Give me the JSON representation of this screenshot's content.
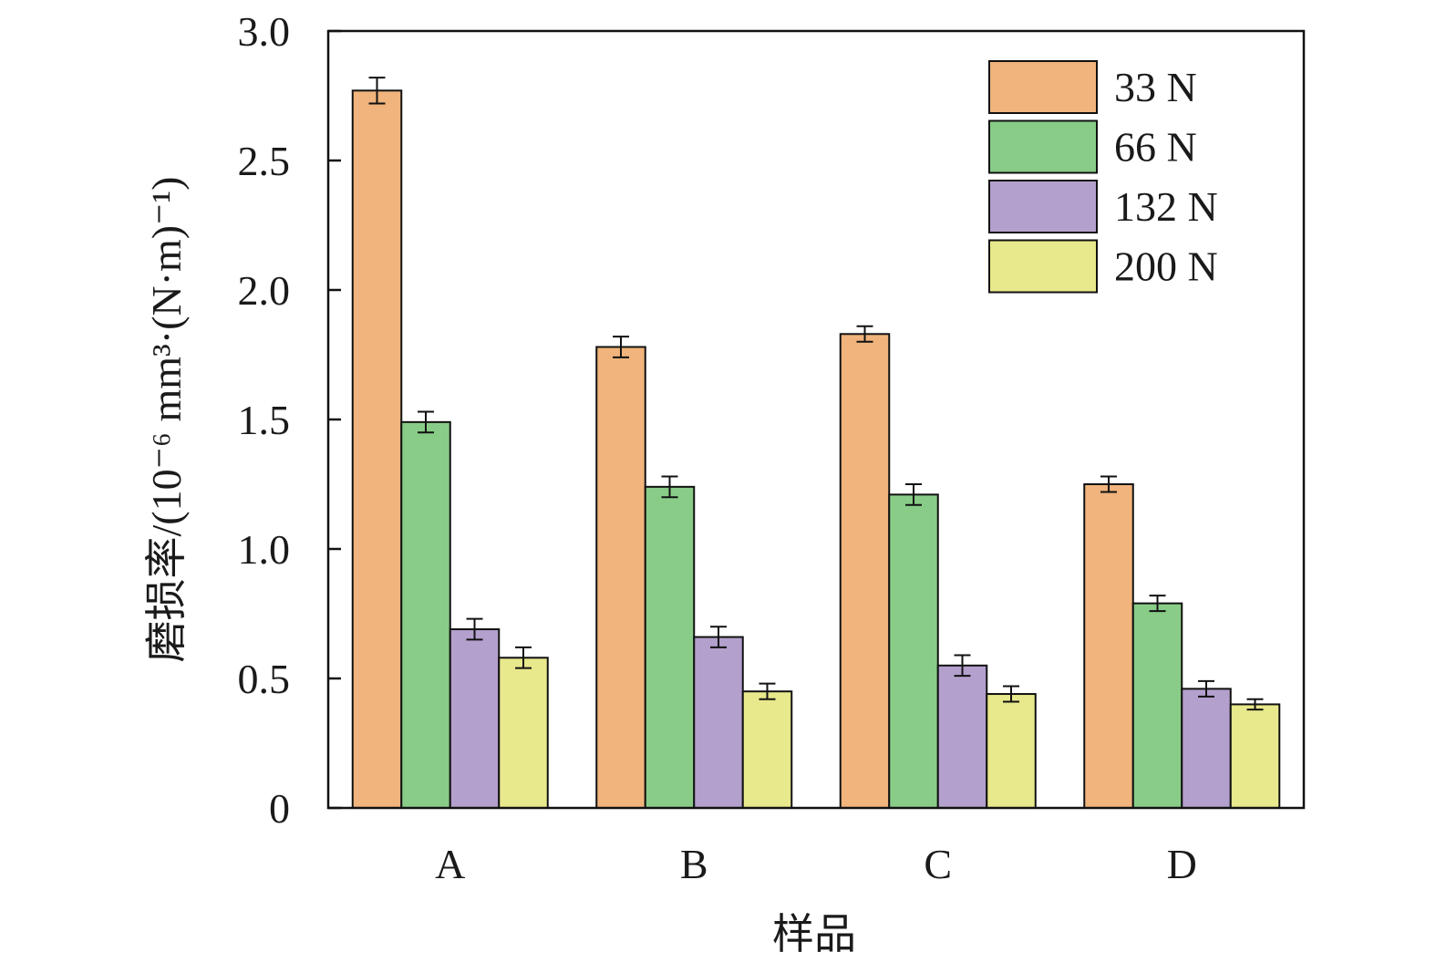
{
  "chart_data": {
    "type": "bar",
    "title": "",
    "xlabel": "样品",
    "ylabel": "磨损率/(10⁻⁶ mm³·(N·m)⁻¹)",
    "ylim": [
      0,
      3.0
    ],
    "yticks": [
      0,
      0.5,
      1.0,
      1.5,
      2.0,
      2.5,
      3.0
    ],
    "ytick_labels": [
      "0",
      "0.5",
      "1.0",
      "1.5",
      "2.0",
      "2.5",
      "3.0"
    ],
    "categories": [
      "A",
      "B",
      "C",
      "D"
    ],
    "grid": false,
    "legend_position": "top-right",
    "series": [
      {
        "name": "33 N",
        "color": "#f0b47c",
        "values": [
          2.77,
          1.78,
          1.83,
          1.25
        ],
        "errors": [
          0.05,
          0.04,
          0.03,
          0.03
        ]
      },
      {
        "name": "66 N",
        "color": "#88cc88",
        "values": [
          1.49,
          1.24,
          1.21,
          0.79
        ],
        "errors": [
          0.04,
          0.04,
          0.04,
          0.03
        ]
      },
      {
        "name": "132 N",
        "color": "#b3a0cc",
        "values": [
          0.69,
          0.66,
          0.55,
          0.46
        ],
        "errors": [
          0.04,
          0.04,
          0.04,
          0.03
        ]
      },
      {
        "name": "200 N",
        "color": "#e8e88c",
        "values": [
          0.58,
          0.45,
          0.44,
          0.4
        ],
        "errors": [
          0.04,
          0.03,
          0.03,
          0.02
        ]
      }
    ]
  }
}
